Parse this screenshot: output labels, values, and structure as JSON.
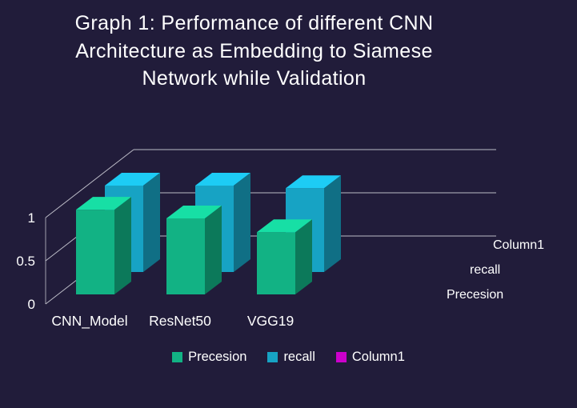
{
  "chart_data": {
    "type": "bar",
    "variant": "3d-clustered-column",
    "title": "Graph 1: Performance of different CNN Architecture as Embedding to Siamese Network while Validation",
    "title_lines": [
      "Graph 1: Performance of different CNN",
      "Architecture as Embedding to Siamese",
      "Network while Validation"
    ],
    "categories": [
      "CNN_Model",
      "ResNet50",
      "VGG19"
    ],
    "series": [
      {
        "name": "Precesion",
        "color": "#12b284",
        "values": [
          0.98,
          0.88,
          0.72
        ]
      },
      {
        "name": "recall",
        "color": "#17a3c4",
        "values": [
          1.0,
          1.0,
          0.97
        ]
      },
      {
        "name": "Column1",
        "color": "#cc00cc",
        "values": [
          0,
          0,
          0
        ]
      }
    ],
    "yticks": [
      0,
      0.5,
      1
    ],
    "ylim": [
      0,
      1
    ],
    "xlabel": "",
    "ylabel": "",
    "legend_position": "bottom",
    "depth_axis_labels": [
      "Precesion",
      "recall",
      "Column1"
    ],
    "grid": "on",
    "background": "#211c3a",
    "text_color": "#ffffff",
    "grid_color": "#d8d8e0"
  }
}
